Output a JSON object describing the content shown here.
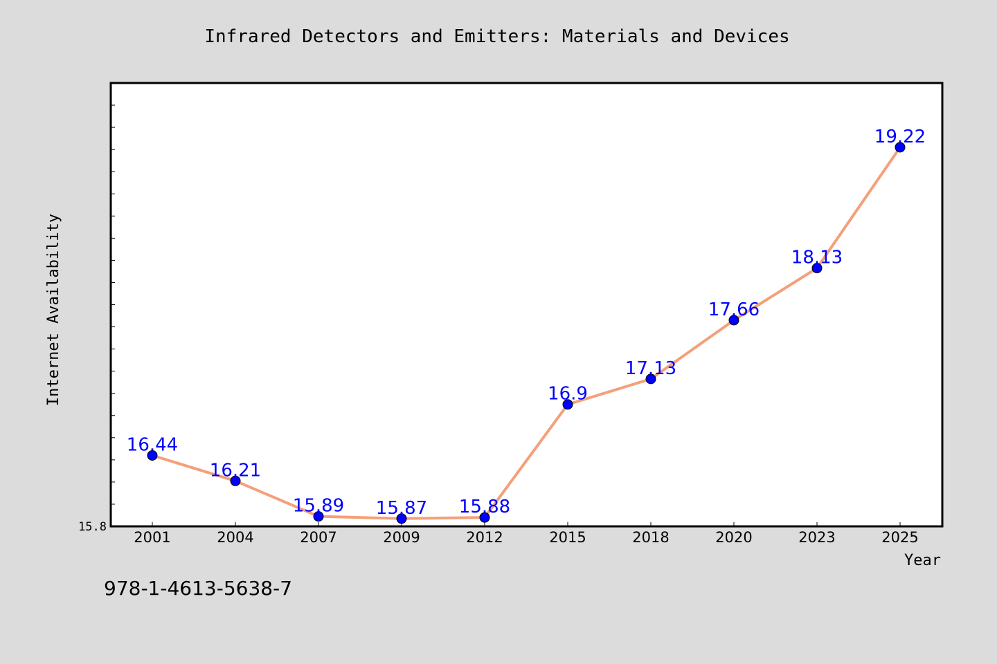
{
  "chart_data": {
    "type": "line",
    "title": "Infrared Detectors and Emitters: Materials and Devices",
    "xlabel": "Year",
    "ylabel": "Internet Availability",
    "categories": [
      "2001",
      "2004",
      "2007",
      "2009",
      "2012",
      "2015",
      "2018",
      "2020",
      "2023",
      "2025"
    ],
    "series": [
      {
        "values": [
          16.44,
          16.21,
          15.89,
          15.87,
          15.88,
          16.9,
          17.13,
          17.66,
          18.13,
          19.22
        ],
        "value_labels": [
          "16.44",
          "16.21",
          "15.89",
          "15.87",
          "15.88",
          "16.9",
          "17.13",
          "17.66",
          "18.13",
          "19.22"
        ]
      }
    ],
    "ylim": [
      15.8,
      19.8
    ],
    "y_tick_labels": [
      "15.8"
    ],
    "grid": false,
    "legend": "none",
    "colors": {
      "line": "#f4a07a",
      "marker": "#0000ff",
      "value_label": "#0000ff",
      "background": "#dcdcdc",
      "plot_background": "#ffffff"
    }
  },
  "annotation": {
    "isbn": "978-1-4613-5638-7"
  }
}
